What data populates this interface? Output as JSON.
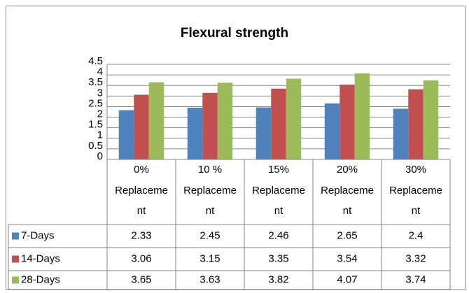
{
  "chart_data": {
    "type": "bar",
    "title": "Flexural strength",
    "categories": [
      "0% Replacement",
      "10 % Replacement",
      "15% Replacement",
      "20% Replacement",
      "30% Replacement"
    ],
    "series": [
      {
        "name": "7-Days",
        "color": "#4f81bd",
        "values": [
          2.33,
          2.45,
          2.46,
          2.65,
          2.4
        ]
      },
      {
        "name": "14-Days",
        "color": "#c0504d",
        "values": [
          3.06,
          3.15,
          3.35,
          3.54,
          3.32
        ]
      },
      {
        "name": "28-Days",
        "color": "#9bbb59",
        "values": [
          3.65,
          3.63,
          3.82,
          4.07,
          3.74
        ]
      }
    ],
    "ylim": [
      0,
      4.5
    ],
    "yticks": [
      0,
      0.5,
      1,
      1.5,
      2,
      2.5,
      3,
      3.5,
      4,
      4.5
    ],
    "grid": true,
    "data_table": true
  }
}
